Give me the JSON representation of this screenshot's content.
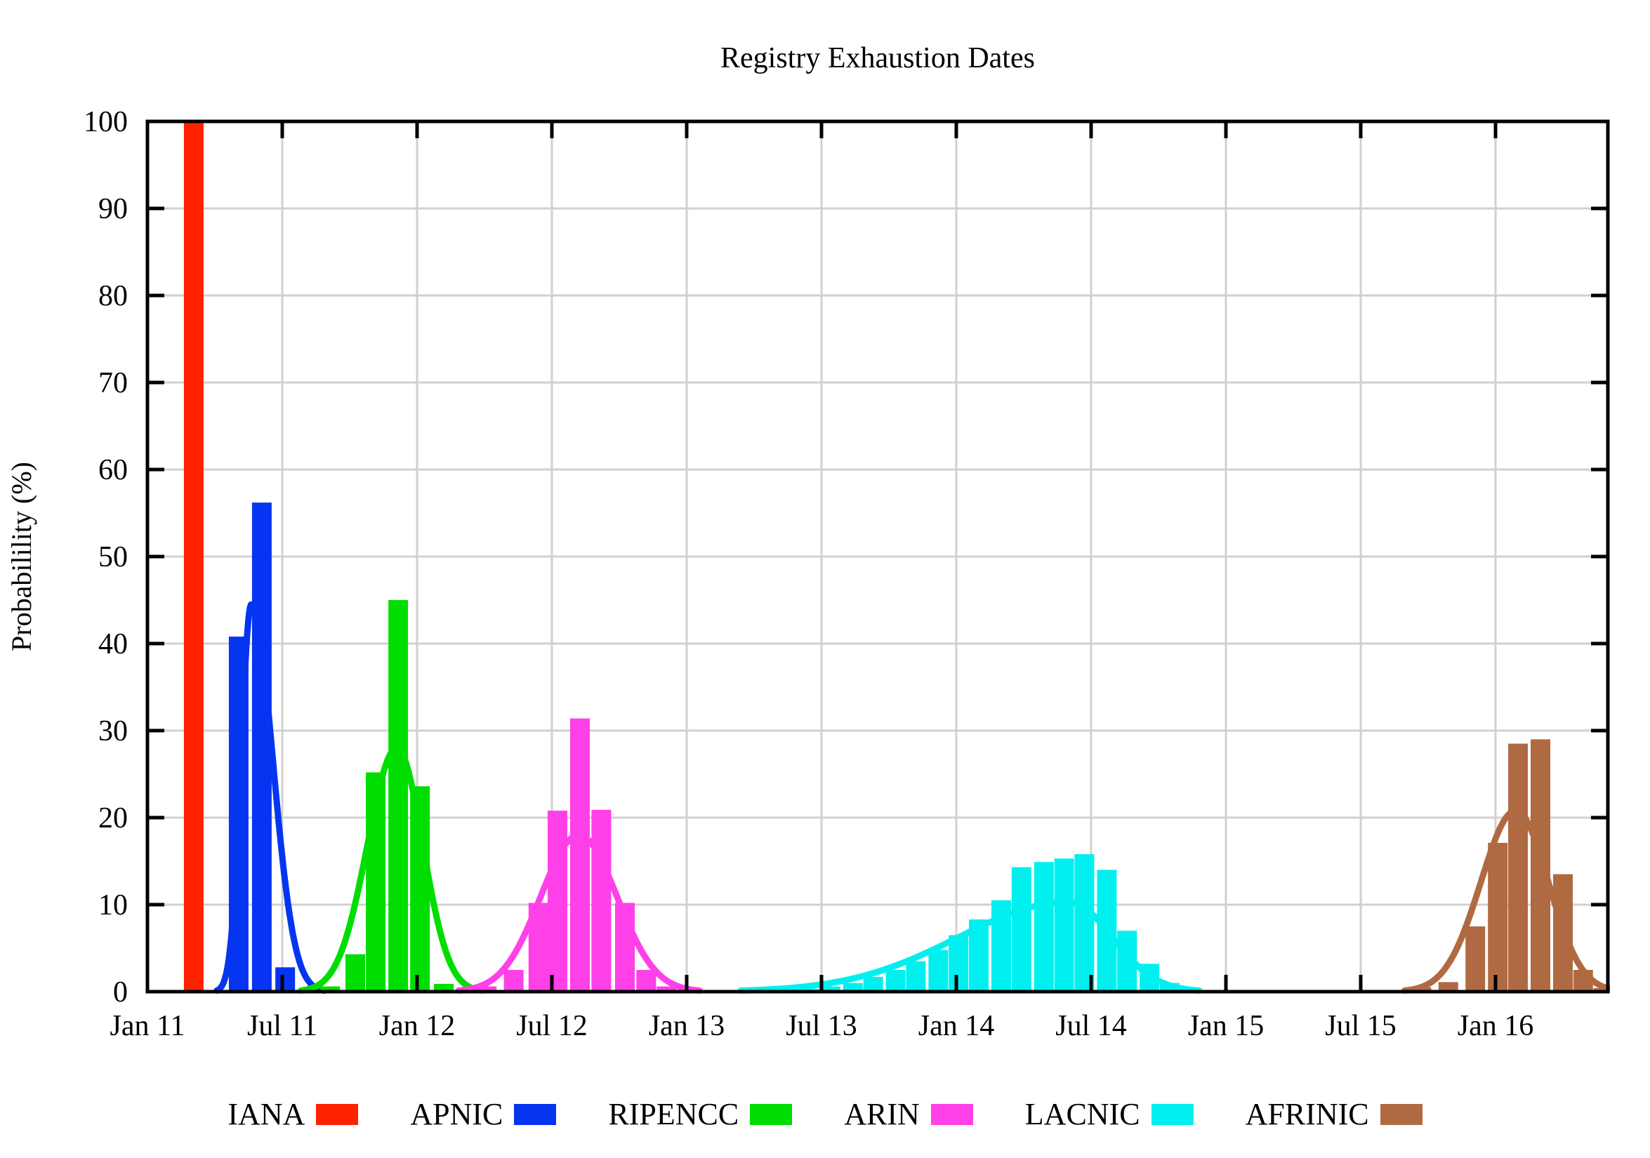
{
  "title": "Registry Exhaustion Dates",
  "axes": {
    "ylabel": "Probabilility (%)",
    "y_ticks": [
      0,
      10,
      20,
      30,
      40,
      50,
      60,
      70,
      80,
      90,
      100
    ],
    "y_range": [
      0,
      100
    ],
    "x_range_months": [
      0,
      65
    ],
    "x_ticks": [
      {
        "label": "Jan 11",
        "month": 0
      },
      {
        "label": "Jul 11",
        "month": 6
      },
      {
        "label": "Jan 12",
        "month": 12
      },
      {
        "label": "Jul 12",
        "month": 18
      },
      {
        "label": "Jan 13",
        "month": 24
      },
      {
        "label": "Jul 13",
        "month": 30
      },
      {
        "label": "Jan 14",
        "month": 36
      },
      {
        "label": "Jul 14",
        "month": 42
      },
      {
        "label": "Jan 15",
        "month": 48
      },
      {
        "label": "Jul 15",
        "month": 54
      },
      {
        "label": "Jan 16",
        "month": 60
      }
    ]
  },
  "style_colors": {
    "grid": "#d0d0d0",
    "frame": "#000000",
    "background": "#ffffff"
  },
  "chart_data": {
    "type": "bar",
    "title": "Registry Exhaustion Dates",
    "xlabel": "",
    "ylabel": "Probabilility (%)",
    "ylim": [
      0,
      100
    ],
    "x_unit": "months since Jan 2011 (monthly probability bins)",
    "grid": true,
    "legend_position": "bottom",
    "bar_width_months": 0.875,
    "series": [
      {
        "name": "IANA",
        "color": "#ff2200",
        "bars": [
          {
            "month": 2.06,
            "value": 100
          }
        ],
        "curve": null
      },
      {
        "name": "APNIC",
        "color": "#0535f0",
        "bars": [
          {
            "month": 4.06,
            "value": 40.8
          },
          {
            "month": 5.09,
            "value": 56.2
          },
          {
            "month": 6.13,
            "value": 2.8
          }
        ],
        "curve": {
          "peak": 44.5,
          "mu": 4.62,
          "sigma_left": 0.45,
          "sigma_right": 0.95
        }
      },
      {
        "name": "RIPENCC",
        "color": "#00dd00",
        "bars": [
          {
            "month": 8.13,
            "value": 0.6
          },
          {
            "month": 9.25,
            "value": 4.3
          },
          {
            "month": 10.16,
            "value": 25.2
          },
          {
            "month": 11.16,
            "value": 45.0
          },
          {
            "month": 12.13,
            "value": 23.6
          },
          {
            "month": 13.19,
            "value": 0.9
          }
        ],
        "curve": {
          "peak": 28.0,
          "mu": 11.1,
          "sigma_left": 1.3,
          "sigma_right": 1.15
        }
      },
      {
        "name": "ARIN",
        "color": "#ff40e8",
        "bars": [
          {
            "month": 15.1,
            "value": 0.6
          },
          {
            "month": 16.3,
            "value": 2.5
          },
          {
            "month": 17.4,
            "value": 10.2
          },
          {
            "month": 18.25,
            "value": 20.8
          },
          {
            "month": 19.25,
            "value": 31.4
          },
          {
            "month": 20.2,
            "value": 20.9
          },
          {
            "month": 21.25,
            "value": 10.2
          },
          {
            "month": 22.2,
            "value": 2.5
          },
          {
            "month": 23.1,
            "value": 0.6
          }
        ],
        "curve": {
          "peak": 18.0,
          "mu": 19.2,
          "sigma_left": 1.7,
          "sigma_right": 1.7
        }
      },
      {
        "name": "LACNIC",
        "color": "#00f0f0",
        "bars": [
          {
            "month": 29.5,
            "value": 0.3
          },
          {
            "month": 30.4,
            "value": 0.6
          },
          {
            "month": 31.4,
            "value": 1.0
          },
          {
            "month": 32.3,
            "value": 1.7
          },
          {
            "month": 33.3,
            "value": 2.5
          },
          {
            "month": 34.2,
            "value": 3.5
          },
          {
            "month": 35.2,
            "value": 4.8
          },
          {
            "month": 36.1,
            "value": 6.5
          },
          {
            "month": 37.0,
            "value": 8.3
          },
          {
            "month": 38.0,
            "value": 10.5
          },
          {
            "month": 38.9,
            "value": 14.3
          },
          {
            "month": 39.9,
            "value": 14.9
          },
          {
            "month": 40.8,
            "value": 15.3
          },
          {
            "month": 41.7,
            "value": 15.8
          },
          {
            "month": 42.7,
            "value": 14.0
          },
          {
            "month": 43.6,
            "value": 7.0
          },
          {
            "month": 44.6,
            "value": 3.2
          },
          {
            "month": 45.5,
            "value": 1.0
          },
          {
            "month": 46.5,
            "value": 0.3
          }
        ],
        "curve": {
          "peak": 10.3,
          "mu": 41.0,
          "sigma_left": 4.9,
          "sigma_right": 1.95
        }
      },
      {
        "name": "AFRINIC",
        "color": "#b06a42",
        "bars": [
          {
            "month": 56.7,
            "value": 0.5
          },
          {
            "month": 57.9,
            "value": 1.1
          },
          {
            "month": 59.1,
            "value": 7.5
          },
          {
            "month": 60.1,
            "value": 17.1
          },
          {
            "month": 61.0,
            "value": 28.5
          },
          {
            "month": 62.0,
            "value": 29.0
          },
          {
            "month": 63.0,
            "value": 13.5
          },
          {
            "month": 63.9,
            "value": 2.5
          },
          {
            "month": 64.8,
            "value": 0.4
          }
        ],
        "curve": {
          "peak": 20.8,
          "mu": 60.9,
          "sigma_left": 1.55,
          "sigma_right": 1.45
        }
      }
    ]
  },
  "legend": [
    {
      "label": "IANA",
      "color": "#ff2200"
    },
    {
      "label": "APNIC",
      "color": "#0535f0"
    },
    {
      "label": "RIPENCC",
      "color": "#00dd00"
    },
    {
      "label": "ARIN",
      "color": "#ff40e8"
    },
    {
      "label": "LACNIC",
      "color": "#00f0f0"
    },
    {
      "label": "AFRINIC",
      "color": "#b06a42"
    }
  ]
}
